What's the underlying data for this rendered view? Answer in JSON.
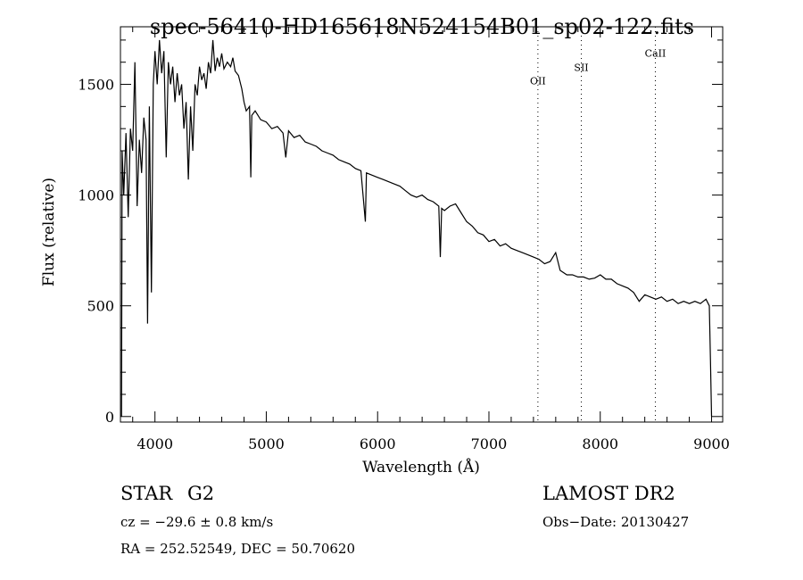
{
  "chart_data": {
    "type": "line",
    "title": "spec-56410-HD165618N524154B01_sp02-122.fits",
    "xlabel": "Wavelength (Å)",
    "ylabel": "Flux (relative)",
    "xlim": [
      3690,
      9100
    ],
    "ylim": [
      -25,
      1760
    ],
    "xticks": [
      4000,
      5000,
      6000,
      7000,
      8000,
      9000
    ],
    "yticks": [
      0,
      500,
      1000,
      1500
    ],
    "xminor_step": 200,
    "yminor_step": 100,
    "grid": false,
    "line_markers": [
      {
        "label": "OII",
        "x": 7440,
        "label_y": 1500
      },
      {
        "label": "SII",
        "x": 7830,
        "label_y": 1560
      },
      {
        "label": "CaII",
        "x": 8495,
        "label_y": 1625
      }
    ],
    "series": [
      {
        "name": "spectrum",
        "color": "#000000",
        "points": [
          [
            3700,
            0
          ],
          [
            3705,
            1200
          ],
          [
            3720,
            1000
          ],
          [
            3740,
            1280
          ],
          [
            3760,
            900
          ],
          [
            3780,
            1300
          ],
          [
            3800,
            1200
          ],
          [
            3820,
            1600
          ],
          [
            3840,
            950
          ],
          [
            3860,
            1250
          ],
          [
            3880,
            1100
          ],
          [
            3900,
            1350
          ],
          [
            3920,
            1250
          ],
          [
            3934,
            420
          ],
          [
            3950,
            1400
          ],
          [
            3968,
            560
          ],
          [
            3985,
            1500
          ],
          [
            4000,
            1650
          ],
          [
            4020,
            1500
          ],
          [
            4040,
            1700
          ],
          [
            4060,
            1550
          ],
          [
            4080,
            1650
          ],
          [
            4101,
            1170
          ],
          [
            4120,
            1600
          ],
          [
            4140,
            1500
          ],
          [
            4160,
            1580
          ],
          [
            4180,
            1420
          ],
          [
            4200,
            1550
          ],
          [
            4220,
            1450
          ],
          [
            4240,
            1500
          ],
          [
            4260,
            1300
          ],
          [
            4280,
            1420
          ],
          [
            4300,
            1070
          ],
          [
            4320,
            1400
          ],
          [
            4340,
            1200
          ],
          [
            4360,
            1500
          ],
          [
            4380,
            1450
          ],
          [
            4400,
            1580
          ],
          [
            4420,
            1520
          ],
          [
            4440,
            1550
          ],
          [
            4460,
            1480
          ],
          [
            4480,
            1600
          ],
          [
            4500,
            1550
          ],
          [
            4520,
            1700
          ],
          [
            4540,
            1560
          ],
          [
            4560,
            1620
          ],
          [
            4580,
            1580
          ],
          [
            4600,
            1640
          ],
          [
            4620,
            1570
          ],
          [
            4650,
            1600
          ],
          [
            4680,
            1580
          ],
          [
            4700,
            1620
          ],
          [
            4720,
            1560
          ],
          [
            4750,
            1540
          ],
          [
            4780,
            1480
          ],
          [
            4800,
            1420
          ],
          [
            4820,
            1380
          ],
          [
            4850,
            1400
          ],
          [
            4861,
            1080
          ],
          [
            4870,
            1360
          ],
          [
            4900,
            1380
          ],
          [
            4950,
            1340
          ],
          [
            5000,
            1330
          ],
          [
            5050,
            1300
          ],
          [
            5100,
            1310
          ],
          [
            5150,
            1280
          ],
          [
            5175,
            1170
          ],
          [
            5200,
            1290
          ],
          [
            5250,
            1260
          ],
          [
            5300,
            1270
          ],
          [
            5350,
            1240
          ],
          [
            5400,
            1230
          ],
          [
            5450,
            1220
          ],
          [
            5500,
            1200
          ],
          [
            5550,
            1190
          ],
          [
            5600,
            1180
          ],
          [
            5650,
            1160
          ],
          [
            5700,
            1150
          ],
          [
            5750,
            1140
          ],
          [
            5800,
            1120
          ],
          [
            5850,
            1110
          ],
          [
            5890,
            880
          ],
          [
            5900,
            1100
          ],
          [
            5950,
            1090
          ],
          [
            6000,
            1080
          ],
          [
            6050,
            1070
          ],
          [
            6100,
            1060
          ],
          [
            6150,
            1050
          ],
          [
            6200,
            1040
          ],
          [
            6250,
            1020
          ],
          [
            6300,
            1000
          ],
          [
            6350,
            990
          ],
          [
            6400,
            1000
          ],
          [
            6450,
            980
          ],
          [
            6500,
            970
          ],
          [
            6550,
            950
          ],
          [
            6563,
            720
          ],
          [
            6575,
            940
          ],
          [
            6600,
            930
          ],
          [
            6650,
            950
          ],
          [
            6700,
            960
          ],
          [
            6750,
            920
          ],
          [
            6800,
            880
          ],
          [
            6850,
            860
          ],
          [
            6900,
            830
          ],
          [
            6950,
            820
          ],
          [
            7000,
            790
          ],
          [
            7050,
            800
          ],
          [
            7100,
            770
          ],
          [
            7150,
            780
          ],
          [
            7200,
            760
          ],
          [
            7250,
            750
          ],
          [
            7300,
            740
          ],
          [
            7350,
            730
          ],
          [
            7400,
            720
          ],
          [
            7450,
            710
          ],
          [
            7500,
            690
          ],
          [
            7550,
            700
          ],
          [
            7600,
            740
          ],
          [
            7640,
            660
          ],
          [
            7700,
            640
          ],
          [
            7750,
            640
          ],
          [
            7800,
            630
          ],
          [
            7850,
            630
          ],
          [
            7900,
            620
          ],
          [
            7950,
            625
          ],
          [
            8000,
            640
          ],
          [
            8050,
            620
          ],
          [
            8100,
            620
          ],
          [
            8150,
            600
          ],
          [
            8200,
            590
          ],
          [
            8250,
            580
          ],
          [
            8300,
            560
          ],
          [
            8350,
            520
          ],
          [
            8400,
            550
          ],
          [
            8450,
            540
          ],
          [
            8500,
            530
          ],
          [
            8550,
            540
          ],
          [
            8600,
            520
          ],
          [
            8650,
            530
          ],
          [
            8700,
            510
          ],
          [
            8750,
            520
          ],
          [
            8800,
            510
          ],
          [
            8850,
            520
          ],
          [
            8900,
            510
          ],
          [
            8950,
            530
          ],
          [
            8980,
            500
          ],
          [
            8990,
            250
          ],
          [
            9000,
            0
          ]
        ]
      }
    ]
  },
  "info": {
    "class": "STAR",
    "subclass": "G2",
    "survey": "LAMOST DR2",
    "cz": "cz = −29.6 ± 0.8 km/s",
    "obs_date": "Obs−Date: 20130427",
    "coords": "RA = 252.52549, DEC =  50.70620"
  }
}
